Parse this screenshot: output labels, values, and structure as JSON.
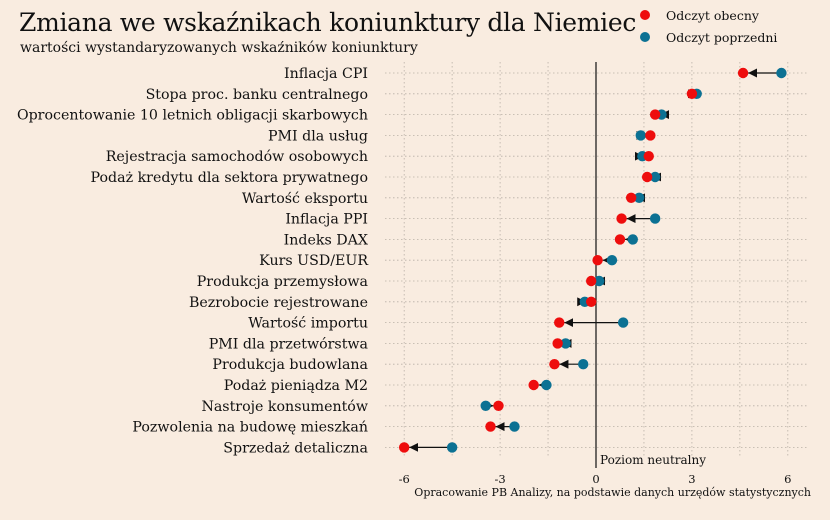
{
  "title": "Zmiana we wskaźnikach koniunktury dla Niemiec",
  "subtitle": "wartości wystandaryzowanych wskaźników koniunktury",
  "source": "Opracowanie PB Analizy, na podstawie danych urzędów statystycznych",
  "legend": {
    "current_label": "Odczyt obecny",
    "previous_label": "Odczyt poprzedni"
  },
  "colors": {
    "current": "#ee0d0d",
    "previous": "#0c7193",
    "background": "#f9ece0",
    "arrow": "#111111"
  },
  "chart_data": {
    "type": "dumbbell",
    "xlim": [
      -6.6,
      6.6
    ],
    "xticks": [
      -6,
      -3,
      0,
      3,
      6
    ],
    "xtick_labels": [
      "-6",
      "-3",
      "0",
      "3",
      "6"
    ],
    "grid": true,
    "legend_position": "top-right",
    "reference_line": {
      "x": 0,
      "label": "Poziom neutralny"
    },
    "series": [
      {
        "name": "Odczyt obecny",
        "key": "current"
      },
      {
        "name": "Odczyt poprzedni",
        "key": "previous"
      }
    ],
    "categories": [
      "Inflacja CPI",
      "Stopa proc. banku centralnego",
      "Oprocentowanie 10 letnich obligacji skarbowych",
      "PMI dla usług",
      "Rejestracja samochodów osobowych",
      "Podaż kredytu dla sektora prywatnego",
      "Wartość eksportu",
      "Inflacja PPI",
      "Indeks DAX",
      "Kurs USD/EUR",
      "Produkcja przemysłowa",
      "Bezrobocie rejestrowane",
      "Wartość importu",
      "PMI dla przetwórstwa",
      "Produkcja budowlana",
      "Podaż pieniądza M2",
      "Nastroje konsumentów",
      "Pozwolenia na budowę mieszkań",
      "Sprzedaż detaliczna"
    ],
    "current": [
      4.6,
      3.0,
      1.85,
      1.7,
      1.65,
      1.6,
      1.1,
      0.8,
      0.75,
      0.05,
      -0.15,
      -0.15,
      -1.15,
      -1.2,
      -1.3,
      -1.95,
      -3.05,
      -3.3,
      -6.0
    ],
    "previous": [
      5.8,
      3.15,
      2.05,
      1.4,
      1.45,
      1.85,
      1.35,
      1.85,
      1.15,
      0.5,
      0.1,
      -0.35,
      0.85,
      -0.95,
      -0.4,
      -1.55,
      -3.45,
      -2.55,
      -4.5
    ]
  }
}
